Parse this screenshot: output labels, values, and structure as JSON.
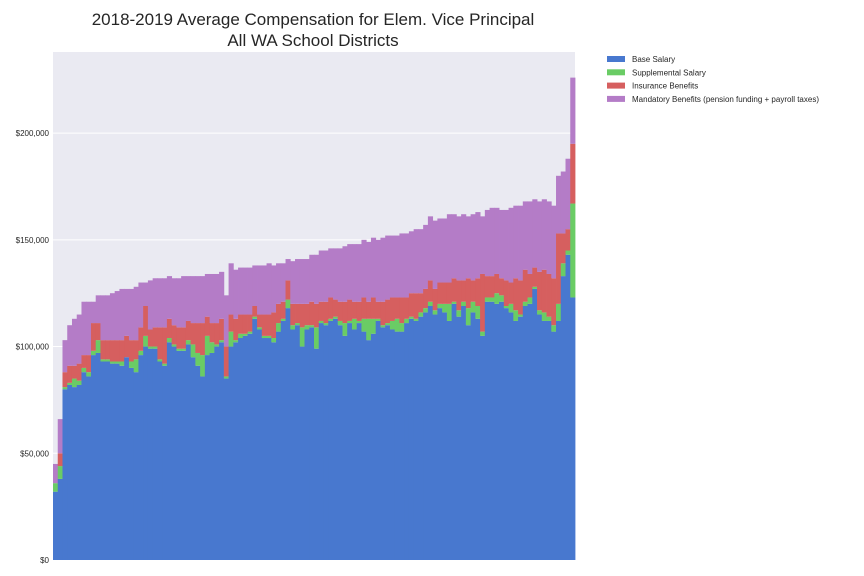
{
  "chart_data": {
    "type": "bar",
    "stacked": true,
    "title": "2018-2019 Average Compensation for Elem. Vice Principal",
    "subtitle": "All WA School Districts",
    "xlabel": "",
    "ylabel": "",
    "ylim": [
      0,
      238000
    ],
    "yticks": [
      0,
      50000,
      100000,
      150000,
      200000
    ],
    "ytick_labels": [
      "$0",
      "$50,000",
      "$100,000",
      "$150,000",
      "$200,000"
    ],
    "grid": true,
    "legend_position": "outside-top-right",
    "colors": {
      "base": "#4878cf",
      "supplemental": "#6acc65",
      "insurance": "#d65f5f",
      "mandatory": "#b47cc7",
      "plot_bg": "#eaeaf2",
      "grid": "#ffffff"
    },
    "legend": [
      {
        "key": "base",
        "label": "Base Salary"
      },
      {
        "key": "supplemental",
        "label": "Supplemental Salary"
      },
      {
        "key": "insurance",
        "label": "Insurance Benefits"
      },
      {
        "key": "mandatory",
        "label": "Mandatory Benefits (pension funding + payroll taxes)"
      }
    ],
    "series": [
      {
        "name": "Base Salary",
        "key": "base",
        "values": [
          32000,
          38000,
          80000,
          82000,
          81000,
          82000,
          88000,
          86000,
          96000,
          97000,
          93000,
          93000,
          92000,
          92000,
          91000,
          95000,
          90000,
          88000,
          96000,
          100000,
          99000,
          99000,
          93000,
          91000,
          102000,
          100000,
          98000,
          98000,
          101000,
          95000,
          91000,
          86000,
          96000,
          97000,
          100000,
          102000,
          85000,
          100000,
          102000,
          104000,
          105000,
          106000,
          113000,
          108000,
          104000,
          104000,
          102000,
          107000,
          112000,
          118000,
          108000,
          110000,
          100000,
          108000,
          109000,
          99000,
          111000,
          110000,
          112000,
          113000,
          110000,
          105000,
          111000,
          108000,
          111000,
          107000,
          103000,
          106000,
          112000,
          109000,
          110000,
          108000,
          107000,
          107000,
          111000,
          113000,
          112000,
          114000,
          116000,
          119000,
          115000,
          118000,
          116000,
          112000,
          120000,
          114000,
          119000,
          110000,
          116000,
          113000,
          105000,
          121000,
          121000,
          120000,
          121000,
          118000,
          116000,
          112000,
          114000,
          119000,
          120000,
          127000,
          115000,
          112000,
          112000,
          107000,
          112000,
          133000,
          143000,
          123000
        ]
      },
      {
        "name": "Supplemental Salary",
        "key": "supplemental",
        "values": [
          4000,
          6000,
          1000,
          1000,
          4000,
          2000,
          2000,
          2000,
          2000,
          6000,
          1000,
          1000,
          1000,
          1000,
          2000,
          0,
          3000,
          6000,
          2000,
          5000,
          1000,
          1000,
          1000,
          1000,
          2000,
          1000,
          1000,
          1000,
          2000,
          6000,
          6000,
          10000,
          9000,
          5000,
          1000,
          1000,
          1000,
          7000,
          1000,
          2000,
          1000,
          1000,
          1000,
          1000,
          1000,
          1000,
          2000,
          4000,
          1000,
          4000,
          2000,
          1000,
          9000,
          2000,
          1000,
          10000,
          1000,
          1000,
          1000,
          1000,
          2000,
          6000,
          1000,
          5000,
          1000,
          6000,
          10000,
          7000,
          1000,
          1000,
          1000,
          4000,
          6000,
          4000,
          2000,
          1000,
          1000,
          2000,
          2000,
          2000,
          2000,
          2000,
          4000,
          8000,
          1000,
          3000,
          2000,
          8000,
          5000,
          6000,
          2000,
          2000,
          2000,
          5000,
          3000,
          1000,
          4000,
          5000,
          1000,
          2000,
          3000,
          1000,
          2000,
          4000,
          2000,
          3000,
          8000,
          6000,
          2000,
          44000
        ]
      },
      {
        "name": "Insurance Benefits",
        "key": "insurance",
        "values": [
          0,
          6000,
          7000,
          8000,
          6000,
          8000,
          6000,
          8000,
          13000,
          8000,
          9000,
          9000,
          10000,
          10000,
          10000,
          10000,
          10000,
          9000,
          11000,
          14000,
          8000,
          9000,
          15000,
          17000,
          9000,
          9000,
          10000,
          10000,
          9000,
          10000,
          14000,
          15000,
          9000,
          9000,
          10000,
          10000,
          14000,
          8000,
          10000,
          9000,
          9000,
          8000,
          5000,
          6000,
          10000,
          10000,
          12000,
          9000,
          8000,
          9000,
          10000,
          9000,
          11000,
          10000,
          11000,
          11000,
          9000,
          10000,
          10000,
          8000,
          9000,
          10000,
          10000,
          8000,
          9000,
          10000,
          8000,
          10000,
          8000,
          11000,
          11000,
          11000,
          10000,
          12000,
          10000,
          11000,
          12000,
          9000,
          9000,
          10000,
          10000,
          10000,
          10000,
          10000,
          11000,
          14000,
          10000,
          14000,
          10000,
          13000,
          27000,
          10000,
          10000,
          9000,
          8000,
          12000,
          10000,
          15000,
          16000,
          15000,
          11000,
          9000,
          18000,
          20000,
          20000,
          22000,
          33000,
          14000,
          10000,
          28000
        ]
      },
      {
        "name": "Mandatory Benefits (pension funding + payroll taxes)",
        "key": "mandatory",
        "values": [
          9000,
          16000,
          15000,
          19000,
          22000,
          23000,
          25000,
          25000,
          10000,
          13000,
          21000,
          21000,
          22000,
          23000,
          24000,
          22000,
          24000,
          25000,
          21000,
          11000,
          23000,
          23000,
          23000,
          23000,
          20000,
          22000,
          23000,
          24000,
          21000,
          22000,
          22000,
          22000,
          20000,
          23000,
          23000,
          22000,
          24000,
          24000,
          23000,
          22000,
          22000,
          22000,
          19000,
          23000,
          23000,
          24000,
          22000,
          19000,
          18000,
          10000,
          20000,
          21000,
          21000,
          21000,
          22000,
          23000,
          24000,
          24000,
          23000,
          24000,
          25000,
          26000,
          26000,
          27000,
          27000,
          27000,
          28000,
          28000,
          29000,
          30000,
          30000,
          29000,
          29000,
          30000,
          30000,
          29000,
          30000,
          30000,
          30000,
          30000,
          32000,
          30000,
          30000,
          32000,
          30000,
          30000,
          31000,
          29000,
          31000,
          31000,
          27000,
          31000,
          32000,
          31000,
          32000,
          33000,
          35000,
          34000,
          35000,
          32000,
          34000,
          32000,
          33000,
          33000,
          34000,
          34000,
          27000,
          29000,
          33000,
          31000
        ]
      }
    ]
  }
}
